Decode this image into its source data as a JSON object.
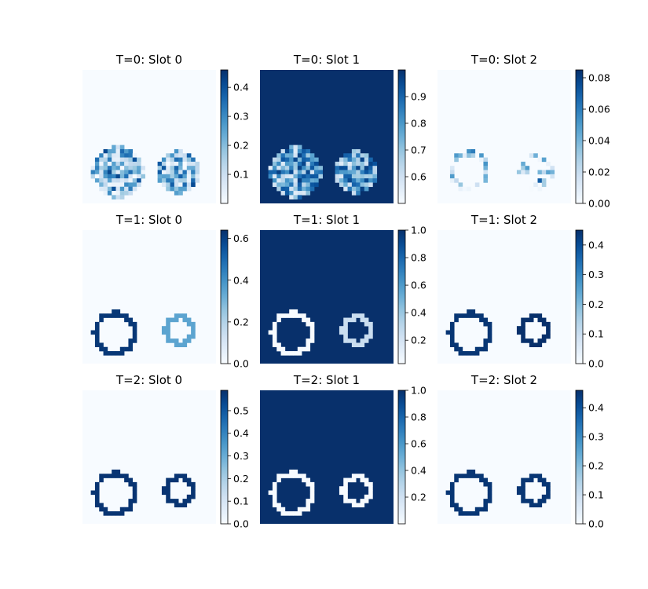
{
  "chart_data": {
    "type": "heatmap",
    "colormap": "Blues",
    "colors": {
      "low": "#f7fbff",
      "high": "#08306b"
    },
    "panels": [
      {
        "title": "T=0: Slot 0",
        "row": 0,
        "col": 0,
        "vmin": 0.0,
        "vmax": 0.46,
        "cbar_ticks": [
          "0.1",
          "0.2",
          "0.3",
          "0.4"
        ],
        "cbar_values": [
          0.1,
          0.2,
          0.3,
          0.4
        ],
        "background": 0.0,
        "mode": "noisy",
        "noise_range": [
          0.0,
          0.42
        ]
      },
      {
        "title": "T=0: Slot 1",
        "row": 0,
        "col": 1,
        "vmin": 0.5,
        "vmax": 1.0,
        "cbar_ticks": [
          "0.6",
          "0.7",
          "0.8",
          "0.9"
        ],
        "cbar_values": [
          0.6,
          0.7,
          0.8,
          0.9
        ],
        "background": 1.0,
        "mode": "noisy",
        "noise_range": [
          0.55,
          0.97
        ]
      },
      {
        "title": "T=0: Slot 2",
        "row": 0,
        "col": 2,
        "vmin": 0.0,
        "vmax": 0.085,
        "cbar_ticks": [
          "0.00",
          "0.02",
          "0.04",
          "0.06",
          "0.08"
        ],
        "cbar_values": [
          0.0,
          0.02,
          0.04,
          0.06,
          0.08
        ],
        "background": 0.0,
        "mode": "sparse",
        "noise_range": [
          0.0,
          0.07
        ]
      },
      {
        "title": "T=1: Slot 0",
        "row": 1,
        "col": 0,
        "vmin": 0.0,
        "vmax": 0.64,
        "cbar_ticks": [
          "0.0",
          "0.2",
          "0.4",
          "0.6"
        ],
        "cbar_values": [
          0.0,
          0.2,
          0.4,
          0.6
        ],
        "background": 0.0,
        "mode": "outline",
        "outline_value": 0.62,
        "outline_value_right": 0.35
      },
      {
        "title": "T=1: Slot 1",
        "row": 1,
        "col": 1,
        "vmin": 0.03,
        "vmax": 1.0,
        "cbar_ticks": [
          "0.2",
          "0.4",
          "0.6",
          "0.8",
          "1.0"
        ],
        "cbar_values": [
          0.2,
          0.4,
          0.6,
          0.8,
          1.0
        ],
        "background": 1.0,
        "mode": "outline",
        "outline_value": 0.03,
        "outline_value_right": 0.25
      },
      {
        "title": "T=1: Slot 2",
        "row": 1,
        "col": 2,
        "vmin": 0.0,
        "vmax": 0.45,
        "cbar_ticks": [
          "0.0",
          "0.1",
          "0.2",
          "0.3",
          "0.4"
        ],
        "cbar_values": [
          0.0,
          0.1,
          0.2,
          0.3,
          0.4
        ],
        "background": 0.0,
        "mode": "outline",
        "outline_value": 0.44,
        "outline_value_right": 0.45
      },
      {
        "title": "T=2: Slot 0",
        "row": 2,
        "col": 0,
        "vmin": 0.0,
        "vmax": 0.59,
        "cbar_ticks": [
          "0.0",
          "0.1",
          "0.2",
          "0.3",
          "0.4",
          "0.5"
        ],
        "cbar_values": [
          0.0,
          0.1,
          0.2,
          0.3,
          0.4,
          0.5
        ],
        "background": 0.0,
        "mode": "outline",
        "outline_value": 0.58,
        "outline_value_right": 0.58
      },
      {
        "title": "T=2: Slot 1",
        "row": 2,
        "col": 1,
        "vmin": 0.0,
        "vmax": 1.0,
        "cbar_ticks": [
          "0.2",
          "0.4",
          "0.6",
          "0.8",
          "1.0"
        ],
        "cbar_values": [
          0.2,
          0.4,
          0.6,
          0.8,
          1.0
        ],
        "background": 1.0,
        "mode": "outline",
        "outline_value": 0.0,
        "outline_value_right": 0.0
      },
      {
        "title": "T=2: Slot 2",
        "row": 2,
        "col": 2,
        "vmin": 0.0,
        "vmax": 0.46,
        "cbar_ticks": [
          "0.0",
          "0.1",
          "0.2",
          "0.3",
          "0.4"
        ],
        "cbar_values": [
          0.0,
          0.1,
          0.2,
          0.3,
          0.4
        ],
        "background": 0.0,
        "mode": "outline",
        "outline_value": 0.45,
        "outline_value_right": 0.45
      }
    ]
  }
}
